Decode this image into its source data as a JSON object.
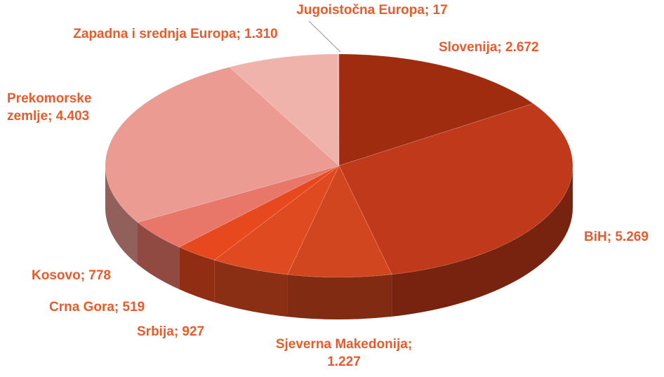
{
  "chart_data": {
    "type": "pie",
    "categories": [
      "Slovenija",
      "BiH",
      "Sjeverna Makedonija",
      "Srbija",
      "Crna Gora",
      "Kosovo",
      "Prekomorske zemlje",
      "Zapadna i srednja Europa",
      "Jugoistočna Europa"
    ],
    "values": [
      2672,
      5269,
      1227,
      927,
      519,
      778,
      4403,
      1310,
      17
    ],
    "value_labels": [
      "2.672",
      "5.269",
      "1.227",
      "927",
      "519",
      "778",
      "4.403",
      "1.310",
      "17"
    ],
    "label_separator": ";",
    "colors": [
      "#a02c10",
      "#c0391a",
      "#d2461f",
      "#df4a21",
      "#e8481d",
      "#e8776a",
      "#eb9b91",
      "#f0b3ab",
      "#f0b3ab"
    ],
    "label_color": "#ea5a2b"
  }
}
